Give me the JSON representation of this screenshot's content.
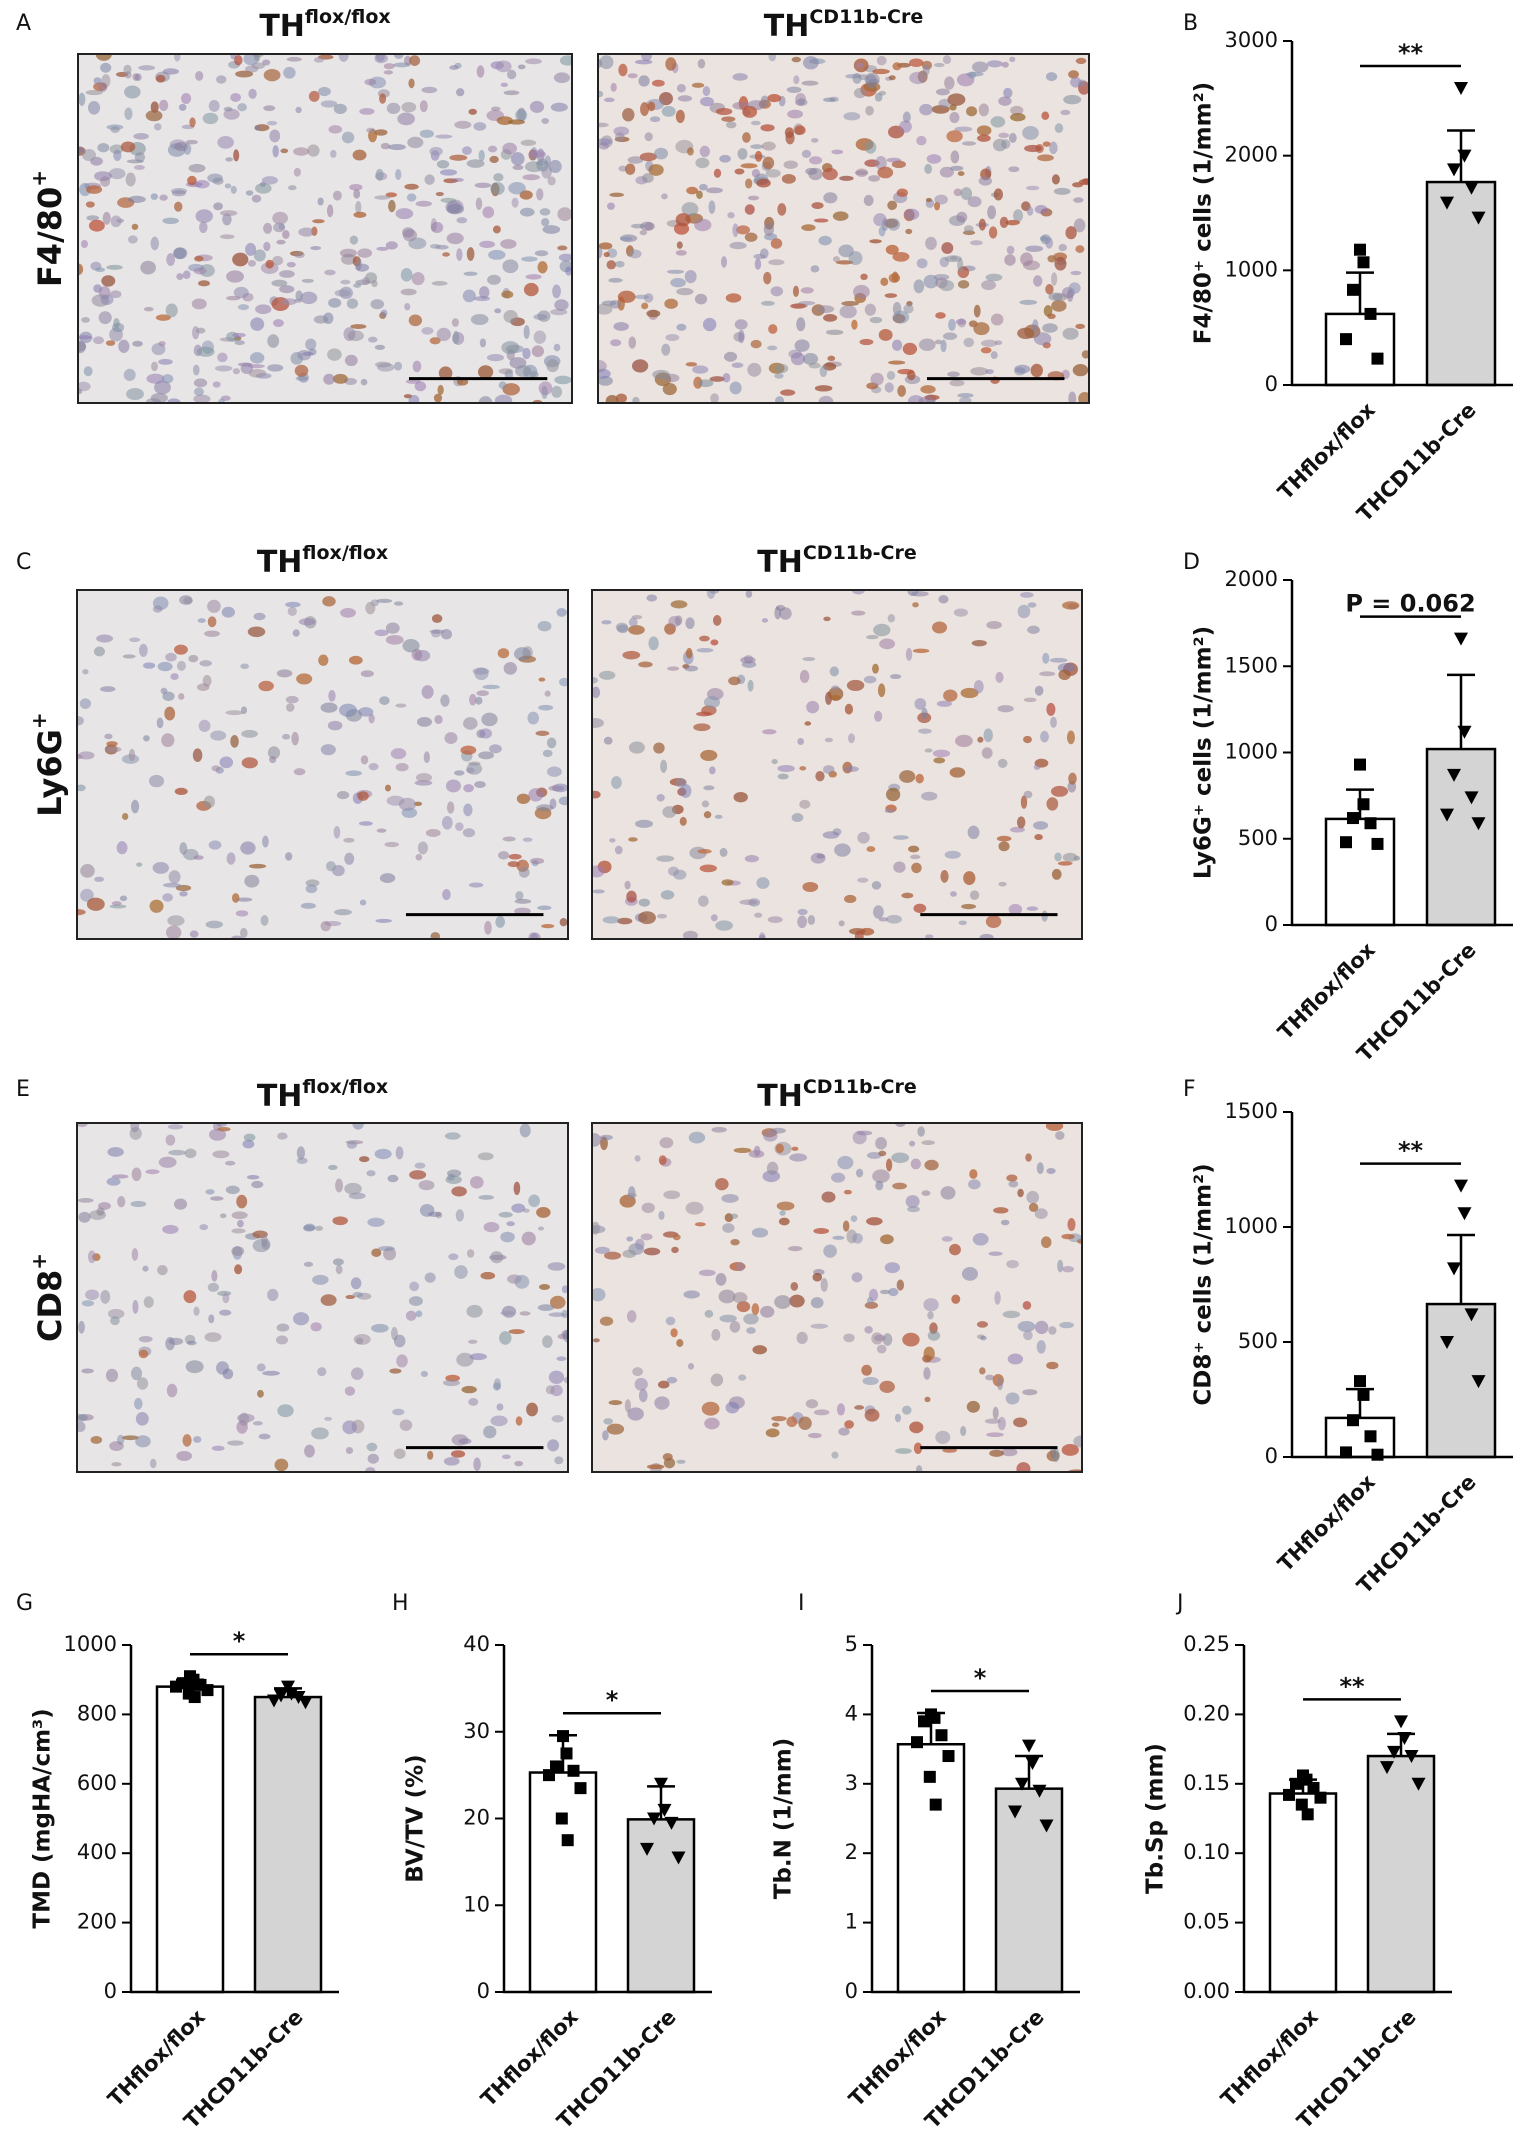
{
  "image_rows": [
    {
      "letter": "A",
      "stain": {
        "base": "F4/80",
        "sup": "+"
      },
      "groups": [
        {
          "base": "TH",
          "sup": "flox/flox"
        },
        {
          "base": "TH",
          "sup": "CD11b-Cre"
        }
      ]
    },
    {
      "letter": "C",
      "stain": {
        "base": "Ly6G",
        "sup": "+"
      },
      "groups": [
        {
          "base": "TH",
          "sup": "flox/flox"
        },
        {
          "base": "TH",
          "sup": "CD11b-Cre"
        }
      ]
    },
    {
      "letter": "E",
      "stain": {
        "base": "CD8",
        "sup": "+"
      },
      "groups": [
        {
          "base": "TH",
          "sup": "flox/flox"
        },
        {
          "base": "TH",
          "sup": "CD11b-Cre"
        }
      ]
    }
  ],
  "chart_data": [
    {
      "type": "bar",
      "letter": "B",
      "ylabel": "F4/80⁺ cells (1/mm²)",
      "significance": "**",
      "categories": [
        "THflox/flox",
        "THCD11b-Cre"
      ],
      "colors": [
        "#ffffff",
        "#d4d4d4"
      ],
      "markers": [
        "square",
        "triangle"
      ],
      "values": [
        620,
        1770
      ],
      "errors": [
        360,
        450
      ],
      "points": [
        [
          1180,
          1070,
          830,
          620,
          400,
          230
        ],
        [
          2590,
          2000,
          1880,
          1720,
          1590,
          1460
        ]
      ],
      "ylim": [
        0,
        3000
      ],
      "yticks": [
        0,
        1000,
        2000,
        3000
      ]
    },
    {
      "type": "bar",
      "letter": "D",
      "ylabel": "Ly6G⁺ cells (1/mm²)",
      "significance": "P = 0.062",
      "categories": [
        "THflox/flox",
        "THCD11b-Cre"
      ],
      "colors": [
        "#ffffff",
        "#d4d4d4"
      ],
      "markers": [
        "square",
        "triangle"
      ],
      "values": [
        615,
        1020
      ],
      "errors": [
        170,
        430
      ],
      "points": [
        [
          930,
          700,
          620,
          590,
          480,
          470
        ],
        [
          1660,
          1120,
          870,
          740,
          640,
          590
        ]
      ],
      "ylim": [
        0,
        2000
      ],
      "yticks": [
        0,
        500,
        1000,
        1500,
        2000
      ]
    },
    {
      "type": "bar",
      "letter": "F",
      "ylabel": "CD8⁺ cells (1/mm²)",
      "significance": "**",
      "categories": [
        "THflox/flox",
        "THCD11b-Cre"
      ],
      "colors": [
        "#ffffff",
        "#d4d4d4"
      ],
      "markers": [
        "square",
        "triangle"
      ],
      "values": [
        170,
        665
      ],
      "errors": [
        125,
        300
      ],
      "points": [
        [
          330,
          270,
          160,
          90,
          20,
          10
        ],
        [
          1180,
          1060,
          820,
          620,
          500,
          330
        ]
      ],
      "ylim": [
        0,
        1500
      ],
      "yticks": [
        0,
        500,
        1000,
        1500
      ]
    },
    {
      "type": "bar",
      "letter": "G",
      "ylabel": "TMD (mgHA/cm³)",
      "significance": "*",
      "categories": [
        "THflox/flox",
        "THCD11b-Cre"
      ],
      "colors": [
        "#ffffff",
        "#d4d4d4"
      ],
      "markers": [
        "square",
        "triangle"
      ],
      "values": [
        880,
        850
      ],
      "errors": [
        20,
        25
      ],
      "points": [
        [
          910,
          900,
          890,
          885,
          880,
          870,
          860,
          850
        ],
        [
          880,
          860,
          855,
          850,
          840,
          835
        ]
      ],
      "ylim": [
        0,
        1000
      ],
      "yticks": [
        0,
        200,
        400,
        600,
        800,
        1000
      ]
    },
    {
      "type": "bar",
      "letter": "H",
      "ylabel": "BV/TV (%)",
      "significance": "*",
      "categories": [
        "THflox/flox",
        "THCD11b-Cre"
      ],
      "colors": [
        "#ffffff",
        "#d4d4d4"
      ],
      "markers": [
        "square",
        "triangle"
      ],
      "values": [
        25.3,
        19.9
      ],
      "errors": [
        4.3,
        3.8
      ],
      "points": [
        [
          29.5,
          27.5,
          26,
          25.5,
          25,
          23.5,
          20,
          17.5
        ],
        [
          24,
          21,
          20,
          19.5,
          16.5,
          15.5
        ]
      ],
      "ylim": [
        0,
        40
      ],
      "yticks": [
        0,
        10,
        20,
        30,
        40
      ]
    },
    {
      "type": "bar",
      "letter": "I",
      "ylabel": "Tb.N (1/mm)",
      "significance": "*",
      "categories": [
        "THflox/flox",
        "THCD11b-Cre"
      ],
      "colors": [
        "#ffffff",
        "#d4d4d4"
      ],
      "markers": [
        "square",
        "triangle"
      ],
      "values": [
        3.57,
        2.93
      ],
      "errors": [
        0.45,
        0.47
      ],
      "points": [
        [
          4.0,
          3.95,
          3.9,
          3.7,
          3.6,
          3.4,
          3.1,
          2.7
        ],
        [
          3.55,
          3.3,
          3.0,
          2.9,
          2.6,
          2.4
        ]
      ],
      "ylim": [
        0,
        5
      ],
      "yticks": [
        0,
        1,
        2,
        3,
        4,
        5
      ]
    },
    {
      "type": "bar",
      "letter": "J",
      "ylabel": "Tb.Sp (mm)",
      "significance": "**",
      "categories": [
        "THflox/flox",
        "THCD11b-Cre"
      ],
      "colors": [
        "#ffffff",
        "#d4d4d4"
      ],
      "markers": [
        "square",
        "triangle"
      ],
      "values": [
        0.143,
        0.17
      ],
      "errors": [
        0.01,
        0.016
      ],
      "points": [
        [
          0.156,
          0.153,
          0.15,
          0.147,
          0.142,
          0.14,
          0.135,
          0.128
        ],
        [
          0.195,
          0.183,
          0.173,
          0.17,
          0.162,
          0.15
        ]
      ],
      "ylim": [
        0,
        0.25
      ],
      "yticks": [
        {
          "value": 0,
          "label": "0.00"
        },
        0.05,
        {
          "value": 0.1,
          "label": "0.10"
        },
        0.15,
        {
          "value": 0.2,
          "label": "0.20"
        },
        0.25
      ]
    }
  ]
}
